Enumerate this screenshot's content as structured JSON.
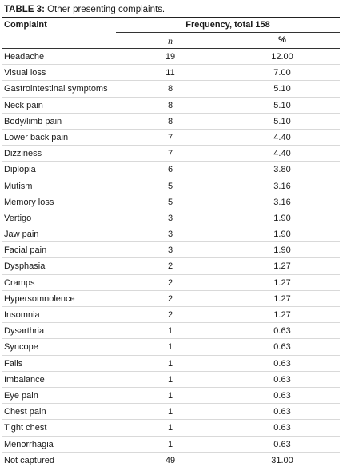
{
  "caption": {
    "label": "TABLE 3:",
    "text": "Other presenting complaints."
  },
  "header": {
    "complaint": "Complaint",
    "frequency": "Frequency, total 158",
    "n": "n",
    "percent": "%"
  },
  "rows": [
    {
      "complaint": "Headache",
      "n": "19",
      "percent": "12.00"
    },
    {
      "complaint": "Visual loss",
      "n": "11",
      "percent": "7.00"
    },
    {
      "complaint": "Gastrointestinal symptoms",
      "n": "8",
      "percent": "5.10"
    },
    {
      "complaint": "Neck pain",
      "n": "8",
      "percent": "5.10"
    },
    {
      "complaint": "Body/limb pain",
      "n": "8",
      "percent": "5.10"
    },
    {
      "complaint": "Lower back pain",
      "n": "7",
      "percent": "4.40"
    },
    {
      "complaint": "Dizziness",
      "n": "7",
      "percent": "4.40"
    },
    {
      "complaint": "Diplopia",
      "n": "6",
      "percent": "3.80"
    },
    {
      "complaint": "Mutism",
      "n": "5",
      "percent": "3.16"
    },
    {
      "complaint": "Memory loss",
      "n": "5",
      "percent": "3.16"
    },
    {
      "complaint": "Vertigo",
      "n": "3",
      "percent": "1.90"
    },
    {
      "complaint": "Jaw pain",
      "n": "3",
      "percent": "1.90"
    },
    {
      "complaint": "Facial pain",
      "n": "3",
      "percent": "1.90"
    },
    {
      "complaint": "Dysphasia",
      "n": "2",
      "percent": "1.27"
    },
    {
      "complaint": "Cramps",
      "n": "2",
      "percent": "1.27"
    },
    {
      "complaint": "Hypersomnolence",
      "n": "2",
      "percent": "1.27"
    },
    {
      "complaint": "Insomnia",
      "n": "2",
      "percent": "1.27"
    },
    {
      "complaint": "Dysarthria",
      "n": "1",
      "percent": "0.63"
    },
    {
      "complaint": "Syncope",
      "n": "1",
      "percent": "0.63"
    },
    {
      "complaint": "Falls",
      "n": "1",
      "percent": "0.63"
    },
    {
      "complaint": "Imbalance",
      "n": "1",
      "percent": "0.63"
    },
    {
      "complaint": "Eye pain",
      "n": "1",
      "percent": "0.63"
    },
    {
      "complaint": "Chest pain",
      "n": "1",
      "percent": "0.63"
    },
    {
      "complaint": "Tight chest",
      "n": "1",
      "percent": "0.63"
    },
    {
      "complaint": "Menorrhagia",
      "n": "1",
      "percent": "0.63"
    },
    {
      "complaint": "Not captured",
      "n": "49",
      "percent": "31.00"
    }
  ]
}
